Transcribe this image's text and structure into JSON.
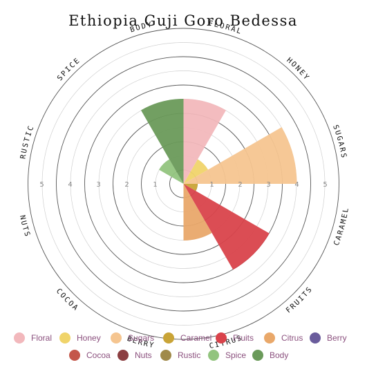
{
  "chart_data": {
    "type": "polar-bar",
    "title": "Ethiopia Guji Goro Bedessa",
    "r_max": 5,
    "r_ticks": [
      "1",
      "2",
      "3",
      "4",
      "5"
    ],
    "categories": [
      "Floral",
      "Honey",
      "Sugars",
      "Caramel",
      "Fruits",
      "Citrus",
      "Berry",
      "Cocoa",
      "Nuts",
      "Rustic",
      "Spice",
      "Body"
    ],
    "axis_labels": [
      "FLORAL",
      "HONEY",
      "SUGARS",
      "CARAMEL",
      "FRUITS",
      "CITRUS",
      "BERRY",
      "COCOA",
      "NUTS",
      "RUSTIC",
      "SPICE",
      "BODY"
    ],
    "values": [
      3,
      1,
      4,
      0.5,
      3.5,
      2,
      0,
      0,
      0,
      0,
      1,
      3
    ],
    "colors": [
      "#f2b8bc",
      "#f0d46a",
      "#f5c590",
      "#c9a437",
      "#d9434b",
      "#e9a86a",
      "#6a5c9c",
      "#c4574a",
      "#8c3f42",
      "#a08a4a",
      "#92c47e",
      "#6a9a5a"
    ],
    "legend": {
      "rows": [
        [
          "Floral",
          "Honey",
          "Sugars",
          "Caramel",
          "Fruits",
          "Citrus",
          "Berry"
        ],
        [
          "Cocoa",
          "Nuts",
          "Rustic",
          "Spice",
          "Body"
        ]
      ]
    },
    "grid": true
  }
}
